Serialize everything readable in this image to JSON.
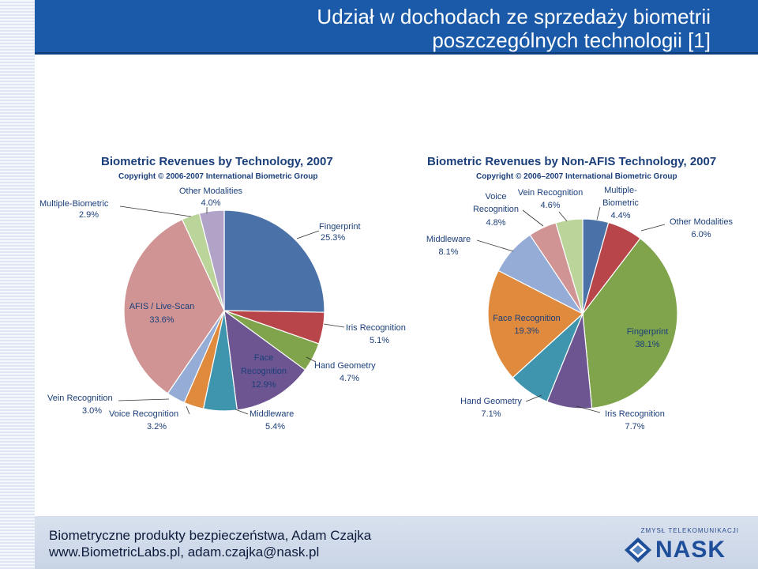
{
  "slide": {
    "title_line1": "Udział w dochodach ze sprzedaży biometrii",
    "title_line2": "poszczególnych technologii [1]",
    "footer_line1": "Biometryczne produkty bezpieczeństwa, Adam Czajka",
    "footer_line2": "www.BiometricLabs.pl, adam.czajka@nask.pl",
    "logo_tagline": "ZMYSŁ TELEKOMUNIKACJI",
    "logo_text": "NASK"
  },
  "chart_data": [
    {
      "type": "pie",
      "title": "Biometric Revenues by Technology, 2007",
      "subtitle": "Copyright © 2006-2007  International Biometric Group",
      "slices": [
        {
          "name": "Fingerprint",
          "value": 25.3,
          "label": "25.3%",
          "color": "#4a72a8"
        },
        {
          "name": "Iris Recognition",
          "value": 5.1,
          "label": "5.1%",
          "color": "#b8454a"
        },
        {
          "name": "Hand Geometry",
          "value": 4.7,
          "label": "4.7%",
          "color": "#7fa44c"
        },
        {
          "name": "Face Recognition",
          "value": 12.9,
          "label": "12.9%",
          "color": "#6c5590"
        },
        {
          "name": "Middleware",
          "value": 5.4,
          "label": "5.4%",
          "color": "#3f95ad"
        },
        {
          "name": "Voice Recognition",
          "value": 3.2,
          "label": "3.2%",
          "color": "#e08a3d"
        },
        {
          "name": "Vein Recognition",
          "value": 3.0,
          "label": "3.0%",
          "color": "#94acd6"
        },
        {
          "name": "AFIS / Live-Scan",
          "value": 33.6,
          "label": "33.6%",
          "color": "#d09494"
        },
        {
          "name": "Multiple-Biometric",
          "value": 2.9,
          "label": "2.9%",
          "color": "#bad49a"
        },
        {
          "name": "Other Modalities",
          "value": 4.0,
          "label": "4.0%",
          "color": "#b1a3c8"
        }
      ]
    },
    {
      "type": "pie",
      "title": "Biometric Revenues by Non-AFIS Technology, 2007",
      "subtitle": "Copyright © 2006–2007  International Biometric Group",
      "slices": [
        {
          "name": "Multiple-Biometric",
          "value": 4.4,
          "label": "4.4%",
          "color": "#4a72a8"
        },
        {
          "name": "Other Modalities",
          "value": 6.0,
          "label": "6.0%",
          "color": "#b8454a"
        },
        {
          "name": "Fingerprint",
          "value": 38.1,
          "label": "38.1%",
          "color": "#7fa44c"
        },
        {
          "name": "Iris Recognition",
          "value": 7.7,
          "label": "7.7%",
          "color": "#6c5590"
        },
        {
          "name": "Hand Geometry",
          "value": 7.1,
          "label": "7.1%",
          "color": "#3f95ad"
        },
        {
          "name": "Face Recognition",
          "value": 19.3,
          "label": "19.3%",
          "color": "#e08a3d"
        },
        {
          "name": "Middleware",
          "value": 8.1,
          "label": "8.1%",
          "color": "#94acd6"
        },
        {
          "name": "Voice Recognition",
          "value": 4.8,
          "label": "4.8%",
          "color": "#d09494"
        },
        {
          "name": "Vein Recognition",
          "value": 4.6,
          "label": "4.6%",
          "color": "#bad49a"
        }
      ]
    }
  ]
}
